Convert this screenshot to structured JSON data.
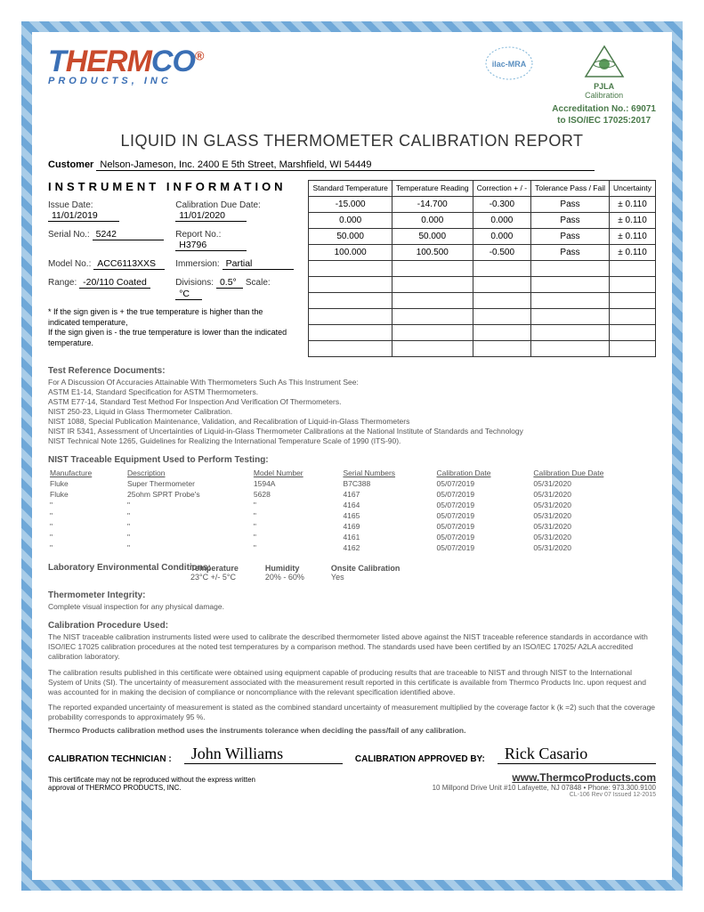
{
  "logo": {
    "brand_a": "T",
    "brand_b": "HERM",
    "brand_c": "CO",
    "sub": "PRODUCTS, INC",
    "reg": "®"
  },
  "badges": {
    "ilac": "ilac-MRA",
    "pjla": "PJLA",
    "pjla_sub": "Calibration"
  },
  "accreditation": {
    "line1": "Accreditation No.: 69071",
    "line2": "to ISO/IEC 17025:2017"
  },
  "title": "LIQUID IN GLASS THERMOMETER CALIBRATION REPORT",
  "customer": {
    "label": "Customer",
    "value": "Nelson-Jameson, Inc.   2400 E 5th Street, Marshfield, WI  54449"
  },
  "instrument": {
    "header": "INSTRUMENT  INFORMATION",
    "issue_date_lbl": "Issue Date:",
    "issue_date": "11/01/2019",
    "cal_due_lbl": "Calibration Due Date:",
    "cal_due": "11/01/2020",
    "serial_lbl": "Serial No.:",
    "serial": "5242",
    "report_lbl": "Report No.:",
    "report": "H3796",
    "model_lbl": "Model No.:",
    "model": "ACC6113XXS",
    "immersion_lbl": "Immersion:",
    "immersion": "Partial",
    "range_lbl": "Range:",
    "range": "-20/110 Coated",
    "divisions_lbl": "Divisions:",
    "divisions": "0.5°",
    "scale_lbl": "Scale:",
    "scale": "°C",
    "sign_note1": "* If the sign given is + the true temperature is higher than the indicated temperature,",
    "sign_note2": "If the sign given is -  the true temperature is lower than the indicated temperature."
  },
  "table": {
    "headers": [
      "Standard Temperature",
      "Temperature Reading",
      "Correction + / -",
      "Tolerance Pass / Fail",
      "Uncertainty"
    ],
    "rows": [
      [
        "-15.000",
        "-14.700",
        "-0.300",
        "Pass",
        "± 0.110"
      ],
      [
        "0.000",
        "0.000",
        "0.000",
        "Pass",
        "± 0.110"
      ],
      [
        "50.000",
        "50.000",
        "0.000",
        "Pass",
        "± 0.110"
      ],
      [
        "100.000",
        "100.500",
        "-0.500",
        "Pass",
        "± 0.110"
      ],
      [
        "",
        "",
        "",
        "",
        ""
      ],
      [
        "",
        "",
        "",
        "",
        ""
      ],
      [
        "",
        "",
        "",
        "",
        ""
      ],
      [
        "",
        "",
        "",
        "",
        ""
      ],
      [
        "",
        "",
        "",
        "",
        ""
      ],
      [
        "",
        "",
        "",
        "",
        ""
      ]
    ]
  },
  "refs": {
    "header": "Test Reference Documents:",
    "lines": [
      "For A Discussion Of Accuracies Attainable With Thermometers Such As This Instrument See:",
      "ASTM E1-14,  Standard Specification for ASTM Thermometers.",
      "ASTM E77-14,  Standard Test Method For Inspection And Verification Of Thermometers.",
      "NIST   250-23,  Liquid in Glass Thermometer Calibration.",
      "NIST   1088,  Special Publication     Maintenance, Validation, and Recalibration of Liquid-in-Glass Thermometers",
      "NIST   IR 5341,  Assessment of Uncertainties of Liquid-in-Glass Thermometer Calibrations at the National Institute of Standards and Technology",
      "NIST   Technical Note 1265,  Guidelines for Realizing the International Temperature Scale of 1990 (ITS-90)."
    ]
  },
  "equip": {
    "header": "NIST Traceable Equipment Used to Perform Testing:",
    "cols": [
      "Manufacture",
      "Description",
      "Model Number",
      "Serial Numbers",
      "Calibration Date",
      "Calibration Due Date"
    ],
    "rows": [
      [
        "Fluke",
        "Super Thermometer",
        "1594A",
        "B7C388",
        "05/07/2019",
        "05/31/2020"
      ],
      [
        "Fluke",
        "25ohm SPRT Probe's",
        "5628",
        "4167",
        "05/07/2019",
        "05/31/2020"
      ],
      [
        "\"",
        "\"",
        "\"",
        "4164",
        "05/07/2019",
        "05/31/2020"
      ],
      [
        "\"",
        "\"",
        "\"",
        "4165",
        "05/07/2019",
        "05/31/2020"
      ],
      [
        "\"",
        "\"",
        "\"",
        "4169",
        "05/07/2019",
        "05/31/2020"
      ],
      [
        "\"",
        "\"",
        "\"",
        "4161",
        "05/07/2019",
        "05/31/2020"
      ],
      [
        "\"",
        "\"",
        "\"",
        "4162",
        "05/07/2019",
        "05/31/2020"
      ]
    ]
  },
  "env": {
    "header": "Laboratory Environmental Conditions:",
    "temp_lbl": "Temperature",
    "temp": "23°C +/- 5°C",
    "hum_lbl": "Humidity",
    "hum": "20% - 60%",
    "onsite_lbl": "Onsite Calibration",
    "onsite": "Yes"
  },
  "integrity": {
    "header": "Thermometer Integrity:",
    "text": "Complete visual inspection for any physical damage."
  },
  "procedure": {
    "header": "Calibration Procedure Used:",
    "p1": "The NIST traceable calibration instruments listed  were used to calibrate the described thermometer listed above against the NIST traceable reference standards in accordance with ISO/IEC 17025 calibration procedures at the noted test temperatures by a comparison method. The standards used have been certified by an ISO/IEC 17025/ A2LA  accredited calibration laboratory.",
    "p2": "The calibration results published in this certificate were obtained using equipment capable of producing results that are traceable to NIST and through NIST to the International System of Units (SI). The uncertainty of measurement associated with the measurement result reported in this certificate is available from Thermco Products Inc. upon request and was accounted for in making the decision of compliance or noncompliance with the relevant specification identified above.",
    "p3": "The reported expanded uncertainty of measurement is stated as the combined standard uncertainty of measurement multiplied by the coverage factor k (k =2) such that the coverage probability corresponds to approximately 95 %.",
    "p4": "Thermco Products calibration method uses the instruments tolerance when deciding the pass/fail of any calibration."
  },
  "signatures": {
    "tech_lbl": "CALIBRATION TECHNICIAN :",
    "tech": "John Williams",
    "appr_lbl": "CALIBRATION APPROVED BY:",
    "appr": "Rick Casario"
  },
  "footer": {
    "repro": "This certificate may not be reproduced without the express written approval of THERMCO PRODUCTS, INC.",
    "url": "www.ThermcoProducts.com",
    "addr": "10 Millpond Drive  Unit #10   Lafayette, NJ  07848   •   Phone: 973.300.9100",
    "code": "CL-106  Rev 07  Issued 12-2015"
  }
}
